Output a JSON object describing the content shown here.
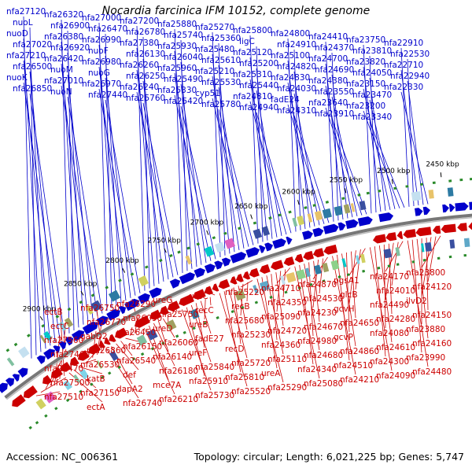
{
  "title": "Nocardia farcinica IFM 10152, complete genome",
  "footer": {
    "accession": "Accession: NC_006361",
    "summary": "Topology: circular; Length: 6,021,225 bp; Genes: 5,747"
  },
  "colors": {
    "forward": "#0000cc",
    "reverse": "#cc0000",
    "backbone": "#888888"
  },
  "tick_labels": [
    "2900 kbp",
    "2850 kbp",
    "2800 kbp",
    "2750 kbp",
    "2700 kbp",
    "2650 kbp",
    "2600 kbp",
    "2550 kbp",
    "2500 kbp",
    "2450 kbp"
  ],
  "forward_genes": [
    "nfa27120",
    "nuoL",
    "nuoD",
    "nfa27020",
    "nfa27210",
    "nfa26500",
    "nuoK",
    "nfa26850",
    "nfa26320",
    "nfa26900",
    "nfa26380",
    "nfa26920",
    "nfa26420",
    "nuoM",
    "nfa27010",
    "nuoN",
    "nfa27000",
    "nfa26470",
    "nfa26990",
    "nuoF",
    "nfa26980",
    "nuoG",
    "nfa26970",
    "nfa27440",
    "nfa27200",
    "nfa26780",
    "nfa27380",
    "nfa26130",
    "nfa26260",
    "nfa26250",
    "nfa26240",
    "nfa25760",
    "nfa25880",
    "nfa25740",
    "nfa25930",
    "nfa26040",
    "nfa25960",
    "nfa25490",
    "nfa25330",
    "nfa25420",
    "nfa25270",
    "nfa25360",
    "nfa25480",
    "nfa25610",
    "nfa25210",
    "nfa25530",
    "cyp51",
    "nfa25780",
    "nfa25800",
    "ligC",
    "nfa25120",
    "nfa25200",
    "nfa25310",
    "nfa25440",
    "nfa24810",
    "nfa24940",
    "nfa24800",
    "nfa24910",
    "nfa25100",
    "nfa24820",
    "nfa24830",
    "nfa24030",
    "fadE24",
    "nfa24310",
    "nfa24410",
    "nfa24370",
    "nfa24700",
    "nfa24690",
    "nfa24380",
    "nfa23550",
    "nfa23640",
    "nfa23910",
    "nfa23750",
    "nfa23810",
    "nfa23820",
    "nfa24050",
    "nfa23150",
    "nfa23470",
    "nfa23200",
    "nfa23340",
    "nfa22910",
    "nfa22530",
    "nfa22710",
    "nfa22940",
    "nfa22330"
  ],
  "reverse_genes": [
    "nfa23800",
    "nfa24120",
    "ilvD2",
    "nfa24150",
    "nfa23880",
    "nfa24160",
    "nfa23990",
    "nfa24480",
    "nfa24170",
    "nfa24010",
    "nfa24490",
    "nfa24280",
    "nfa24080",
    "nfa24610",
    "nfa24300",
    "nfa24090",
    "pgsA1",
    "glcB",
    "gcvH",
    "nfa24650",
    "gcvP",
    "nfa24860",
    "nfa24510",
    "nfa24210",
    "nfa24870",
    "nfa24530",
    "nfa24230",
    "nfa24670",
    "nfa24980",
    "nfa24680",
    "nfa24340",
    "nfa25080",
    "nfa24710",
    "nfa24350",
    "nfa25090",
    "nfa24720",
    "nfa24360",
    "nfa25110",
    "ureA",
    "nfa25290",
    "nfa25220",
    "recB",
    "nfa25680",
    "nfa25230",
    "recD",
    "nfa25720",
    "nfa25810",
    "nfa25520",
    "ureC",
    "recC",
    "ureB",
    "fadE27",
    "ureF",
    "nfa25840",
    "nfa25910",
    "nfa25730",
    "ureG",
    "nfa25750",
    "ureD",
    "nfa26060",
    "nfa26140",
    "nfa26180",
    "mce7A",
    "nfa26210",
    "nfa26290",
    "nfa26090",
    "nfa26450",
    "nfa26150",
    "nfa26540",
    "def",
    "dapA2",
    "nfa26740",
    "nfa26750",
    "nfa26770",
    "gabD2",
    "nfa26860",
    "nfa26530",
    "katB",
    "nfa27150",
    "ectA",
    "ectB",
    "ectC",
    "nfa27560",
    "nfa27460",
    "nfa27470",
    "nfa27500",
    "nfa27510"
  ]
}
